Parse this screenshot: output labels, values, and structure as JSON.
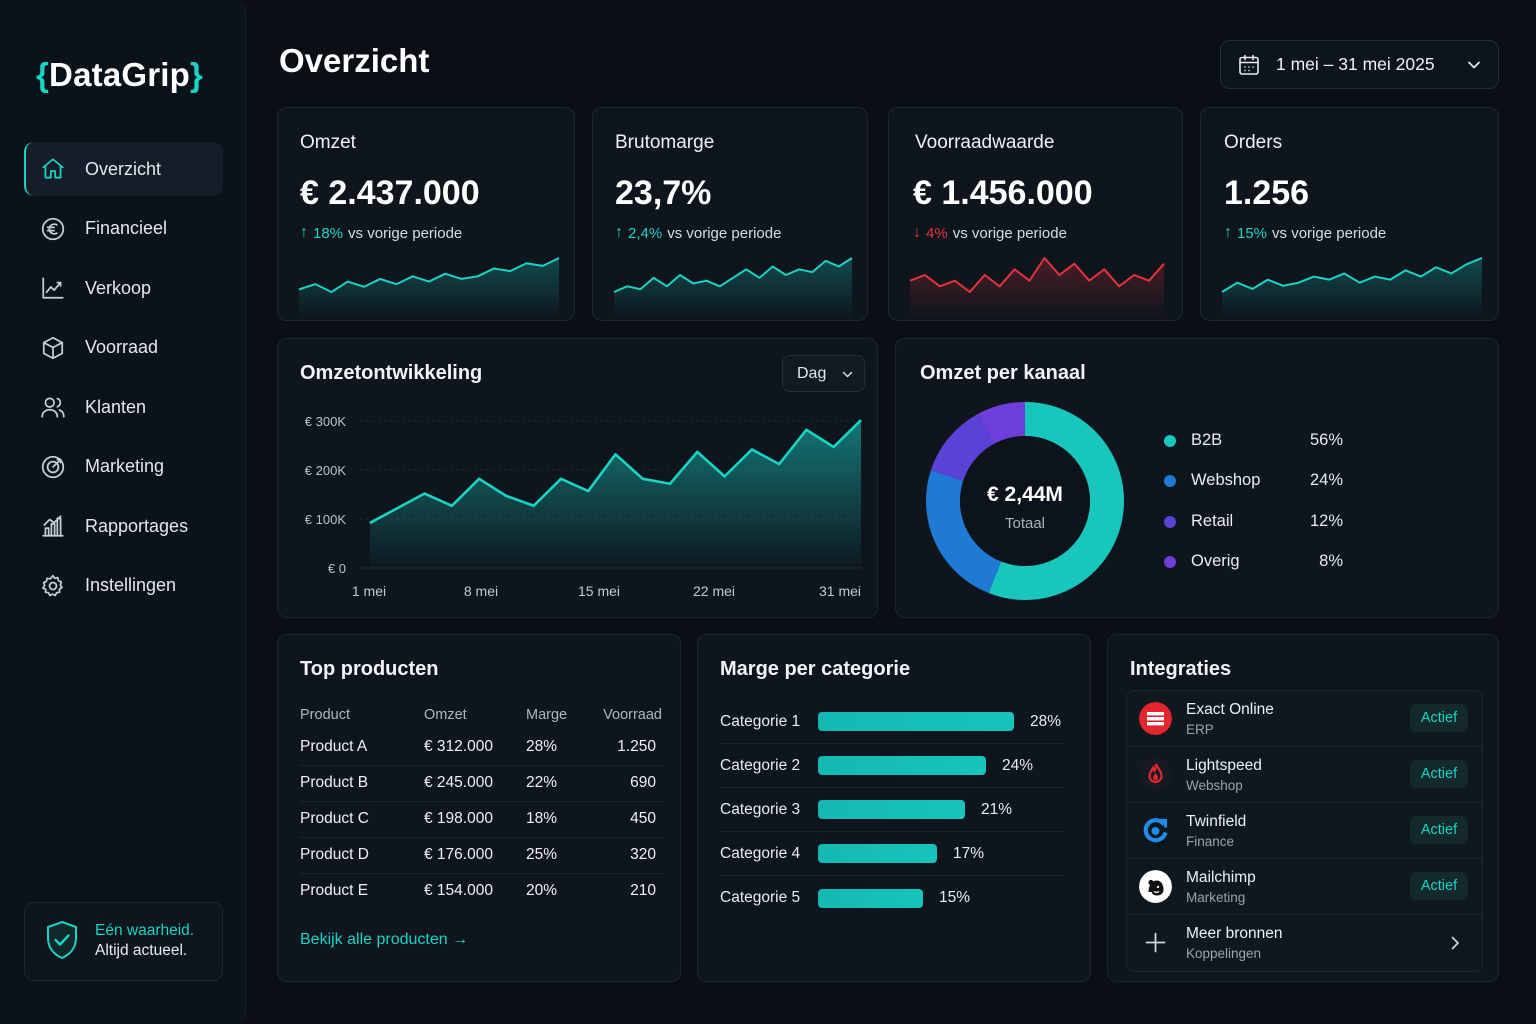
{
  "app": {
    "logo_open": "{",
    "logo_name": "DataGrip",
    "logo_close": "}"
  },
  "sidebar": {
    "items": [
      {
        "label": "Overzicht",
        "icon": "home-icon",
        "active": true
      },
      {
        "label": "Financieel",
        "icon": "euro-icon"
      },
      {
        "label": "Verkoop",
        "icon": "chart-line-icon"
      },
      {
        "label": "Voorraad",
        "icon": "box-icon"
      },
      {
        "label": "Klanten",
        "icon": "users-icon"
      },
      {
        "label": "Marketing",
        "icon": "target-icon"
      },
      {
        "label": "Rapportages",
        "icon": "report-icon"
      },
      {
        "label": "Instellingen",
        "icon": "gear-icon"
      }
    ],
    "footer": {
      "line1": "Eén waarheid.",
      "line2": "Altijd actueel.",
      "icon": "shield-check-icon"
    }
  },
  "header": {
    "title": "Overzicht",
    "date_range": "1 mei – 31 mei 2025"
  },
  "colors": {
    "accent": "#19d3c5",
    "negative": "#e5333b",
    "background": "#0a0f16",
    "card": "#0e151d"
  },
  "kpis": [
    {
      "label": "Omzet",
      "value": "€ 2.437.000",
      "delta": "18%",
      "direction": "up",
      "delta_suffix": "vs vorige periode",
      "trend": [
        4,
        6,
        3,
        7,
        5,
        8,
        6,
        9,
        7,
        10,
        8,
        9,
        12,
        11,
        14,
        13,
        16
      ]
    },
    {
      "label": "Brutomarge",
      "value": "23,7%",
      "delta": "2,4%",
      "direction": "up",
      "delta_suffix": "vs vorige periode",
      "trend": [
        3,
        5,
        4,
        8,
        5,
        9,
        6,
        7,
        5,
        8,
        11,
        8,
        12,
        9,
        11,
        10,
        14,
        12,
        15
      ]
    },
    {
      "label": "Voorraadwaarde",
      "value": "€ 1.456.000",
      "delta": "4%",
      "direction": "down",
      "delta_suffix": "vs vorige periode",
      "trend": [
        9,
        10,
        8,
        9,
        7,
        10,
        8,
        11,
        9,
        13,
        10,
        12,
        9,
        11,
        8,
        10,
        9,
        12
      ]
    },
    {
      "label": "Orders",
      "value": "1.256",
      "delta": "15%",
      "direction": "up",
      "delta_suffix": "vs vorige periode",
      "trend": [
        4,
        7,
        5,
        8,
        6,
        7,
        9,
        8,
        10,
        7,
        9,
        8,
        11,
        9,
        12,
        10,
        13,
        15
      ]
    }
  ],
  "revenue_chart": {
    "title": "Omzetontwikkeling",
    "granularity": "Dag",
    "chart_data": {
      "type": "area",
      "x_ticks": [
        "1 mei",
        "8 mei",
        "15 mei",
        "22 mei",
        "31 mei"
      ],
      "y_ticks": [
        "€ 0",
        "€ 100K",
        "€ 200K",
        "€ 300K"
      ],
      "ylim": [
        0,
        300000
      ],
      "values": [
        92000,
        122000,
        152000,
        127000,
        182000,
        147000,
        127000,
        182000,
        157000,
        232000,
        182000,
        172000,
        237000,
        187000,
        242000,
        212000,
        282000,
        247000,
        302000
      ]
    }
  },
  "channel_chart": {
    "title": "Omzet per kanaal",
    "center_value": "€ 2,44M",
    "center_label": "Totaal",
    "chart_data": {
      "type": "pie",
      "slices": [
        {
          "name": "B2B",
          "value": 56,
          "label": "56%",
          "color": "#17c6bd"
        },
        {
          "name": "Webshop",
          "value": 24,
          "label": "24%",
          "color": "#1f7ad6"
        },
        {
          "name": "Retail",
          "value": 12,
          "label": "12%",
          "color": "#5b42d6"
        },
        {
          "name": "Overig",
          "value": 8,
          "label": "8%",
          "color": "#6e3fd8"
        }
      ]
    }
  },
  "top_products": {
    "title": "Top producten",
    "columns": [
      "Product",
      "Omzet",
      "Marge",
      "Voorraad"
    ],
    "rows": [
      [
        "Product A",
        "€ 312.000",
        "28%",
        "1.250"
      ],
      [
        "Product B",
        "€ 245.000",
        "22%",
        "690"
      ],
      [
        "Product C",
        "€ 198.000",
        "18%",
        "450"
      ],
      [
        "Product D",
        "€ 176.000",
        "25%",
        "320"
      ],
      [
        "Product E",
        "€ 154.000",
        "20%",
        "210"
      ]
    ],
    "link": "Bekijk alle producten →"
  },
  "margin_chart": {
    "title": "Marge per categorie",
    "chart_data": {
      "type": "bar",
      "categories": [
        "Categorie 1",
        "Categorie 2",
        "Categorie 3",
        "Categorie 4",
        "Categorie 5"
      ],
      "values": [
        28,
        24,
        21,
        17,
        15
      ],
      "labels": [
        "28%",
        "24%",
        "21%",
        "17%",
        "15%"
      ]
    }
  },
  "integrations": {
    "title": "Integraties",
    "items": [
      {
        "name": "Exact Online",
        "sub": "ERP",
        "status": "Actief",
        "icon": "exact-online-icon"
      },
      {
        "name": "Lightspeed",
        "sub": "Webshop",
        "status": "Actief",
        "icon": "lightspeed-icon"
      },
      {
        "name": "Twinfield",
        "sub": "Finance",
        "status": "Actief",
        "icon": "twinfield-icon"
      },
      {
        "name": "Mailchimp",
        "sub": "Marketing",
        "status": "Actief",
        "icon": "mailchimp-icon"
      }
    ],
    "more": {
      "name": "Meer bronnen",
      "sub": "Koppelingen"
    }
  }
}
